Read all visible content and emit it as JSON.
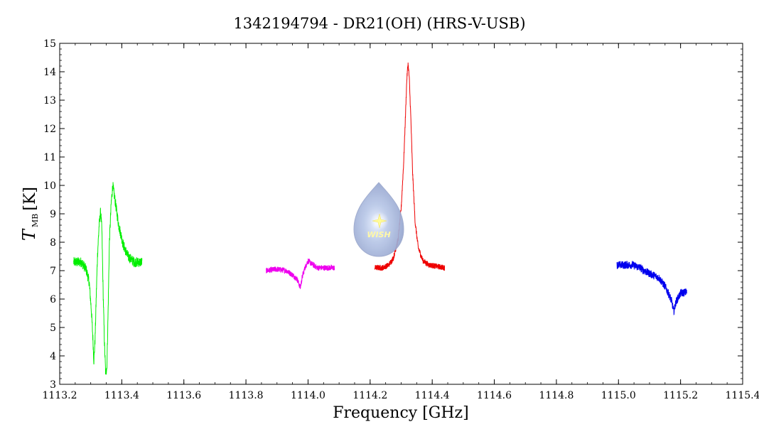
{
  "chart_data": {
    "type": "line",
    "title": "1342194794 - DR21(OH) (HRS-V-USB)",
    "xlabel": "Frequency [GHz]",
    "ylabel_main": "T",
    "ylabel_sub": "MB",
    "ylabel_unit": "[K]",
    "xlim": [
      1113.2,
      1115.4
    ],
    "ylim": [
      3,
      15
    ],
    "x_ticks": [
      "1113.2",
      "1113.4",
      "1113.6",
      "1113.8",
      "1114.0",
      "1114.2",
      "1114.4",
      "1114.6",
      "1114.8",
      "1115.0",
      "1115.2",
      "1115.4"
    ],
    "y_ticks": [
      "3",
      "4",
      "5",
      "6",
      "7",
      "8",
      "9",
      "10",
      "11",
      "12",
      "13",
      "14",
      "15"
    ],
    "grid": false,
    "series": [
      {
        "color": "#00ee00",
        "noise": 0.18,
        "points": [
          [
            1113.245,
            7.3
          ],
          [
            1113.27,
            7.3
          ],
          [
            1113.285,
            7.05
          ],
          [
            1113.295,
            6.6
          ],
          [
            1113.302,
            5.6
          ],
          [
            1113.307,
            4.6
          ],
          [
            1113.31,
            3.8
          ],
          [
            1113.314,
            4.6
          ],
          [
            1113.318,
            6.2
          ],
          [
            1113.322,
            7.6
          ],
          [
            1113.327,
            8.6
          ],
          [
            1113.332,
            9.1
          ],
          [
            1113.336,
            8.4
          ],
          [
            1113.34,
            6.2
          ],
          [
            1113.344,
            4.5
          ],
          [
            1113.348,
            3.4
          ],
          [
            1113.352,
            3.6
          ],
          [
            1113.356,
            5.6
          ],
          [
            1113.36,
            8.0
          ],
          [
            1113.366,
            9.4
          ],
          [
            1113.371,
            10.0
          ],
          [
            1113.378,
            9.5
          ],
          [
            1113.39,
            8.6
          ],
          [
            1113.405,
            7.9
          ],
          [
            1113.42,
            7.5
          ],
          [
            1113.44,
            7.3
          ],
          [
            1113.465,
            7.3
          ]
        ]
      },
      {
        "color": "#ee00ee",
        "noise": 0.1,
        "points": [
          [
            1113.865,
            7.0
          ],
          [
            1113.9,
            7.05
          ],
          [
            1113.93,
            7.0
          ],
          [
            1113.95,
            6.85
          ],
          [
            1113.965,
            6.7
          ],
          [
            1113.975,
            6.4
          ],
          [
            1113.982,
            6.8
          ],
          [
            1113.99,
            7.1
          ],
          [
            1114.0,
            7.35
          ],
          [
            1114.01,
            7.25
          ],
          [
            1114.03,
            7.1
          ],
          [
            1114.06,
            7.1
          ],
          [
            1114.085,
            7.1
          ]
        ]
      },
      {
        "color": "#ee0000",
        "noise": 0.1,
        "points": [
          [
            1114.215,
            7.1
          ],
          [
            1114.24,
            7.1
          ],
          [
            1114.26,
            7.2
          ],
          [
            1114.275,
            7.45
          ],
          [
            1114.29,
            8.1
          ],
          [
            1114.3,
            9.2
          ],
          [
            1114.308,
            10.8
          ],
          [
            1114.314,
            12.5
          ],
          [
            1114.318,
            13.7
          ],
          [
            1114.322,
            14.3
          ],
          [
            1114.326,
            13.8
          ],
          [
            1114.331,
            12.4
          ],
          [
            1114.337,
            10.4
          ],
          [
            1114.345,
            8.7
          ],
          [
            1114.355,
            7.8
          ],
          [
            1114.37,
            7.35
          ],
          [
            1114.39,
            7.2
          ],
          [
            1114.415,
            7.15
          ],
          [
            1114.44,
            7.1
          ]
        ]
      },
      {
        "color": "#0000ee",
        "noise": 0.14,
        "points": [
          [
            1114.995,
            7.2
          ],
          [
            1115.02,
            7.2
          ],
          [
            1115.045,
            7.2
          ],
          [
            1115.07,
            7.1
          ],
          [
            1115.09,
            6.95
          ],
          [
            1115.11,
            6.85
          ],
          [
            1115.13,
            6.75
          ],
          [
            1115.15,
            6.45
          ],
          [
            1115.165,
            6.1
          ],
          [
            1115.172,
            5.9
          ],
          [
            1115.178,
            5.55
          ],
          [
            1115.185,
            5.9
          ],
          [
            1115.2,
            6.2
          ],
          [
            1115.22,
            6.25
          ]
        ]
      }
    ]
  },
  "logo": {
    "text": "WISH",
    "body_color": "#a9b9dc",
    "star_color": "#fffb9a"
  }
}
